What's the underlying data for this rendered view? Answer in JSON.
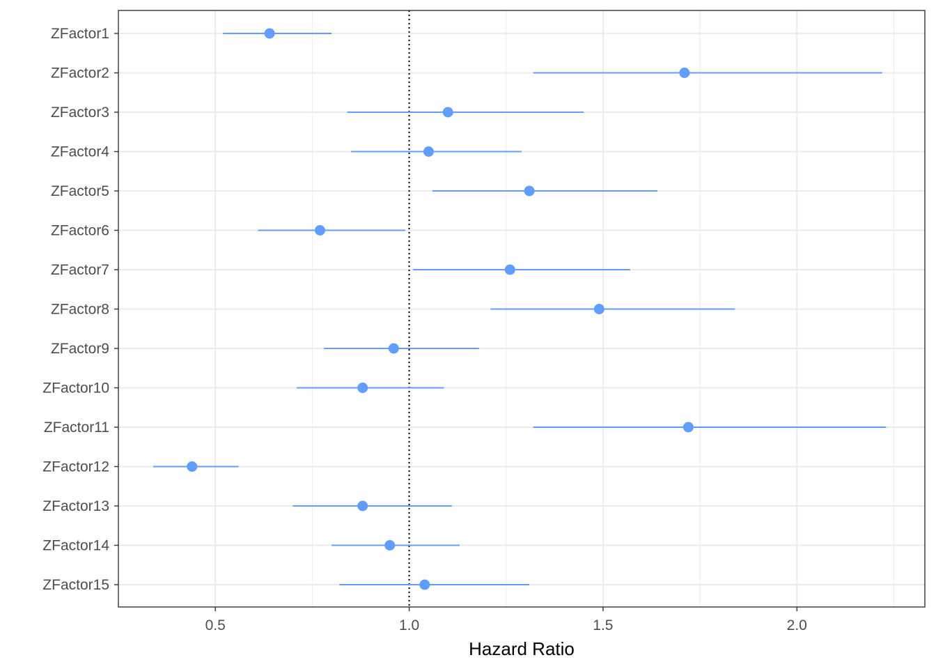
{
  "chart_data": {
    "type": "forest",
    "title": "",
    "xlabel": "Hazard Ratio",
    "ylabel": "",
    "xlim": [
      0.25,
      2.33
    ],
    "x_ticks": [
      0.5,
      1.0,
      1.5,
      2.0
    ],
    "x_tick_labels": [
      "0.5",
      "1.0",
      "1.5",
      "2.0"
    ],
    "reference_line": 1.0,
    "grid": true,
    "colors": {
      "point": "#619CFF",
      "ci": "#619CFF",
      "reference": "#000000",
      "grid": "#EBEBEB",
      "frame": "#333333"
    },
    "categories": [
      "ZFactor1",
      "ZFactor2",
      "ZFactor3",
      "ZFactor4",
      "ZFactor5",
      "ZFactor6",
      "ZFactor7",
      "ZFactor8",
      "ZFactor9",
      "ZFactor10",
      "ZFactor11",
      "ZFactor12",
      "ZFactor13",
      "ZFactor14",
      "ZFactor15"
    ],
    "hr": [
      0.64,
      1.71,
      1.1,
      1.05,
      1.31,
      0.77,
      1.26,
      1.49,
      0.96,
      0.88,
      1.72,
      0.44,
      0.88,
      0.95,
      1.04
    ],
    "lower": [
      0.52,
      1.32,
      0.84,
      0.85,
      1.06,
      0.61,
      1.01,
      1.21,
      0.78,
      0.71,
      1.32,
      0.34,
      0.7,
      0.8,
      0.82
    ],
    "upper": [
      0.8,
      2.22,
      1.45,
      1.29,
      1.64,
      0.99,
      1.57,
      1.84,
      1.18,
      1.09,
      2.23,
      0.56,
      1.11,
      1.13,
      1.31
    ]
  }
}
